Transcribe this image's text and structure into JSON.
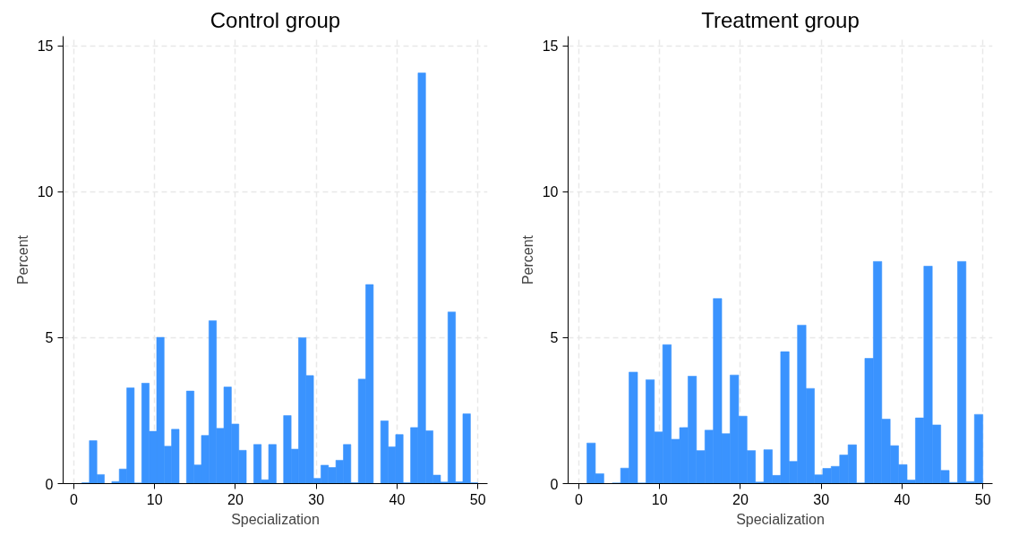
{
  "chart_data": [
    {
      "type": "histogram",
      "title": "Control group",
      "xlabel": "Specialization",
      "ylabel": "Percent",
      "color": "#3a93fe",
      "bins": [
        1.0,
        1.92,
        2.85,
        3.77,
        4.7,
        5.62,
        6.55,
        7.47,
        8.4,
        9.32,
        10.25,
        11.17,
        12.09,
        13.02,
        13.94,
        14.87,
        15.79,
        16.72,
        17.64,
        18.57,
        19.49,
        20.42,
        21.34,
        22.26,
        23.19,
        24.11,
        25.04,
        25.96,
        26.89,
        27.81,
        28.74,
        29.66,
        30.58,
        31.51,
        32.43,
        33.36,
        34.28,
        35.21,
        36.13,
        37.06,
        37.98,
        38.91,
        39.83,
        40.75,
        41.68,
        42.6,
        43.53,
        44.45,
        45.38,
        46.3,
        47.23,
        48.15,
        49.08,
        50.0
      ],
      "values": [
        0.03,
        1.47,
        0.31,
        0,
        0.07,
        0.5,
        3.28,
        0.02,
        3.44,
        1.79,
        5.01,
        1.28,
        1.86,
        0,
        3.17,
        0.64,
        1.65,
        5.58,
        1.89,
        3.31,
        2.04,
        1.14,
        0,
        1.34,
        0.13,
        1.34,
        0,
        2.33,
        1.18,
        5.0,
        3.7,
        0.18,
        0.63,
        0.55,
        0.8,
        1.34,
        0.03,
        3.58,
        6.82,
        0,
        2.15,
        1.26,
        1.68,
        0.03,
        1.92,
        14.07,
        1.81,
        0.29,
        0.05,
        5.88,
        0.06,
        2.39,
        0.03
      ],
      "xlim": [
        -1.33,
        51.2
      ],
      "ylim": [
        0,
        15.33
      ],
      "xticks": [
        0,
        10,
        20,
        30,
        40,
        50
      ],
      "yticks": [
        0,
        5,
        10,
        15
      ],
      "grid": true
    },
    {
      "type": "histogram",
      "title": "Treatment group",
      "xlabel": "Specialization",
      "ylabel": "Percent",
      "color": "#3a93fe",
      "bins": [
        1.0,
        2.04,
        3.09,
        4.13,
        5.17,
        6.21,
        7.26,
        8.3,
        9.34,
        10.38,
        11.43,
        12.47,
        13.51,
        14.55,
        15.6,
        16.64,
        17.68,
        18.72,
        19.77,
        20.81,
        21.85,
        22.89,
        23.94,
        24.98,
        26.02,
        27.06,
        28.11,
        29.15,
        30.19,
        31.23,
        32.28,
        33.32,
        34.36,
        35.4,
        36.45,
        37.49,
        38.53,
        39.57,
        40.62,
        41.66,
        42.7,
        43.74,
        44.79,
        45.83,
        46.87,
        47.91,
        48.96,
        50.0
      ],
      "values": [
        1.39,
        0.34,
        0,
        0.02,
        0.53,
        3.82,
        0.02,
        3.56,
        1.77,
        4.76,
        1.52,
        1.92,
        3.68,
        1.13,
        1.83,
        6.34,
        1.71,
        3.72,
        2.31,
        1.13,
        0.05,
        1.16,
        0.28,
        4.52,
        0.76,
        5.43,
        3.26,
        0.3,
        0.52,
        0.59,
        0.98,
        1.33,
        0.02,
        4.29,
        7.61,
        2.21,
        1.3,
        0.65,
        0.12,
        2.25,
        7.45,
        2.01,
        0.45,
        0.04,
        7.61,
        0.07,
        2.37
      ],
      "xlim": [
        -1.33,
        51.2
      ],
      "ylim": [
        0,
        15.33
      ],
      "xticks": [
        0,
        10,
        20,
        30,
        40,
        50
      ],
      "yticks": [
        0,
        5,
        10,
        15
      ],
      "grid": true
    }
  ]
}
